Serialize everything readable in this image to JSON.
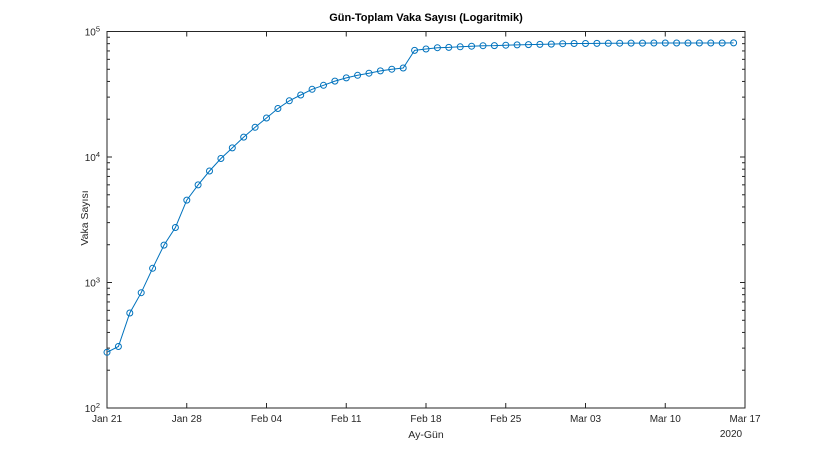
{
  "figure": {
    "background": "#ffffff",
    "frame_color": "#262626",
    "text_color": "#262626"
  },
  "chart_data": {
    "type": "line",
    "title": "Gün-Toplam Vaka Sayısı (Logaritmik)",
    "xlabel": "Ay-Gün",
    "ylabel": "Vaka Sayısı",
    "year_label": "2020",
    "y_scale": "log10",
    "ylim": [
      100,
      100000
    ],
    "grid": false,
    "legend": "none",
    "x_tick_interval_days": 7,
    "x_tick_labels": [
      "Jan 21",
      "Jan 28",
      "Feb 04",
      "Feb 11",
      "Feb 18",
      "Feb 25",
      "Mar 03",
      "Mar 10",
      "Mar 17"
    ],
    "y_ticks": [
      100,
      1000,
      10000,
      100000
    ],
    "series": [
      {
        "name": "Toplam Vaka Sayısı",
        "color": "#0072BD",
        "marker": "open-circle",
        "dates": [
          "Jan 21",
          "Jan 22",
          "Jan 23",
          "Jan 24",
          "Jan 25",
          "Jan 26",
          "Jan 27",
          "Jan 28",
          "Jan 29",
          "Jan 30",
          "Jan 31",
          "Feb 01",
          "Feb 02",
          "Feb 03",
          "Feb 04",
          "Feb 05",
          "Feb 06",
          "Feb 07",
          "Feb 08",
          "Feb 09",
          "Feb 10",
          "Feb 11",
          "Feb 12",
          "Feb 13",
          "Feb 14",
          "Feb 15",
          "Feb 16",
          "Feb 17",
          "Feb 18",
          "Feb 19",
          "Feb 20",
          "Feb 21",
          "Feb 22",
          "Feb 23",
          "Feb 24",
          "Feb 25",
          "Feb 26",
          "Feb 27",
          "Feb 28",
          "Feb 29",
          "Mar 01",
          "Mar 02",
          "Mar 03",
          "Mar 04",
          "Mar 05",
          "Mar 06",
          "Mar 07",
          "Mar 08",
          "Mar 09",
          "Mar 10",
          "Mar 11",
          "Mar 12",
          "Mar 13",
          "Mar 14",
          "Mar 15",
          "Mar 16"
        ],
        "values": [
          278,
          309,
          571,
          830,
          1297,
          1985,
          2741,
          4537,
          5997,
          7736,
          9720,
          11821,
          14411,
          17238,
          20471,
          24363,
          28060,
          31211,
          34598,
          37251,
          40235,
          42708,
          44730,
          46550,
          48548,
          50054,
          51174,
          70635,
          72528,
          74280,
          74675,
          75569,
          76392,
          77042,
          77262,
          77780,
          78191,
          78630,
          78961,
          79394,
          79968,
          80174,
          80304,
          80422,
          80565,
          80711,
          80813,
          80859,
          80904,
          80924,
          80955,
          80981,
          80991,
          81021,
          81048,
          81077
        ]
      }
    ]
  }
}
